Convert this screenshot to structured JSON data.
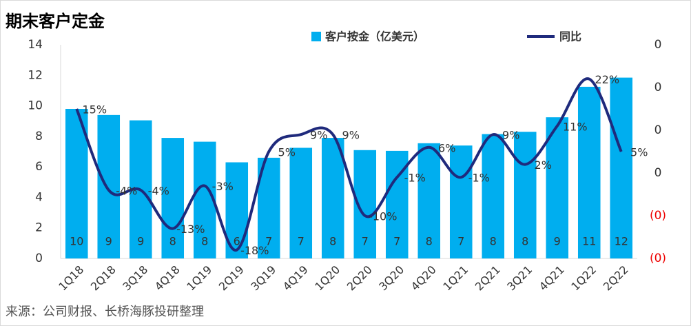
{
  "chart_data": {
    "type": "bar-line",
    "title": "期末客户定金",
    "categories": [
      "1Q18",
      "2Q18",
      "3Q18",
      "4Q18",
      "1Q19",
      "2Q19",
      "3Q19",
      "4Q19",
      "1Q20",
      "2Q20",
      "3Q20",
      "4Q20",
      "1Q21",
      "2Q21",
      "3Q21",
      "4Q21",
      "1Q22",
      "2Q22"
    ],
    "series": [
      {
        "name": "客户按金（亿美元）",
        "type": "bar",
        "color": "#00aeef",
        "values": [
          9.8,
          9.4,
          9.05,
          7.9,
          7.65,
          6.3,
          6.6,
          7.25,
          7.9,
          7.1,
          7.05,
          7.55,
          7.4,
          8.15,
          8.3,
          9.25,
          11.25,
          11.85
        ],
        "value_labels": [
          "10",
          "9",
          "9",
          "8",
          "8",
          "6",
          "7",
          "7",
          "8",
          "7",
          "7",
          "8",
          "7",
          "8",
          "8",
          "9",
          "11",
          "12"
        ]
      },
      {
        "name": "同比",
        "type": "line",
        "axis": "y2",
        "color": "#1f2a7c",
        "values": [
          0.15,
          -0.04,
          -0.04,
          -0.13,
          -0.03,
          -0.18,
          0.05,
          0.09,
          0.09,
          -0.1,
          -0.01,
          0.06,
          -0.01,
          0.09,
          0.02,
          0.11,
          0.22,
          0.05
        ],
        "value_labels": [
          "15%",
          "-4%",
          "-4%",
          "-13%",
          "-3%",
          "-18%",
          "5%",
          "9%",
          "9%",
          "-10%",
          "-1%",
          "6%",
          "-1%",
          "9%",
          "2%",
          "11%",
          "22%",
          "5%"
        ]
      }
    ],
    "ylim": [
      0,
      14
    ],
    "yticks": [
      0,
      2,
      4,
      6,
      8,
      10,
      12,
      14
    ],
    "y2lim": [
      -0.2,
      0.3
    ],
    "y2ticks": [
      {
        "value": 0.3,
        "label": "0"
      },
      {
        "value": 0.2,
        "label": "0"
      },
      {
        "value": 0.1,
        "label": "0"
      },
      {
        "value": 0,
        "label": "0"
      },
      {
        "value": -0.1,
        "label": "(0)"
      },
      {
        "value": -0.2,
        "label": "(0)"
      }
    ],
    "source": "来源：公司财报、长桥海豚投研整理"
  }
}
